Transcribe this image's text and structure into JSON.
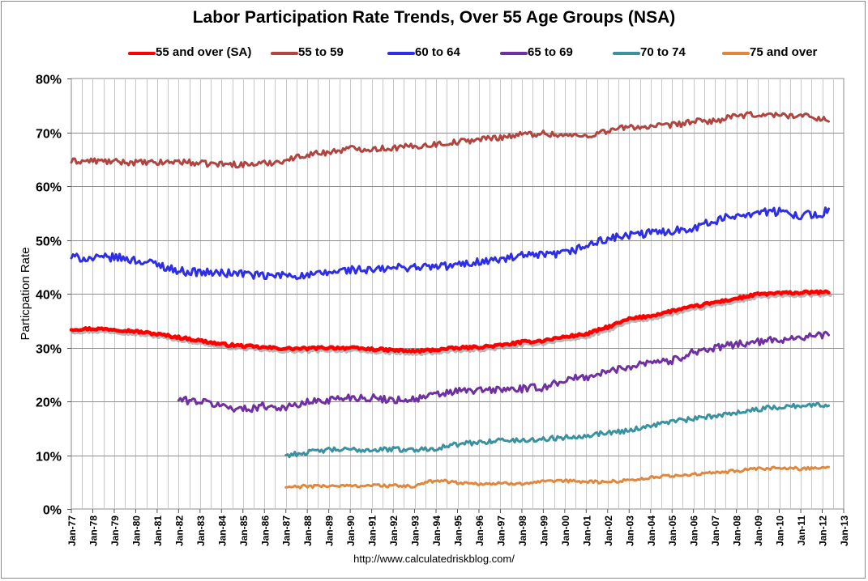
{
  "chart_data": {
    "type": "line",
    "title": "Labor Participation Rate Trends, Over 55 Age Groups (NSA)",
    "ylabel": "Particpation Rate",
    "xlabel": "",
    "source": "http://www.calculatedriskblog.com/",
    "ylim": [
      0,
      80
    ],
    "y_ticks": [
      "0%",
      "10%",
      "20%",
      "30%",
      "40%",
      "50%",
      "60%",
      "70%",
      "80%"
    ],
    "x_range": [
      1977,
      2013
    ],
    "x_ticks": [
      "Jan-77",
      "Jan-78",
      "Jan-79",
      "Jan-80",
      "Jan-81",
      "Jan-82",
      "Jan-83",
      "Jan-84",
      "Jan-85",
      "Jan-86",
      "Jan-87",
      "Jan-88",
      "Jan-89",
      "Jan-90",
      "Jan-91",
      "Jan-92",
      "Jan-93",
      "Jan-94",
      "Jan-95",
      "Jan-96",
      "Jan-97",
      "Jan-98",
      "Jan-99",
      "Jan-00",
      "Jan-01",
      "Jan-02",
      "Jan-03",
      "Jan-04",
      "Jan-05",
      "Jan-06",
      "Jan-07",
      "Jan-08",
      "Jan-09",
      "Jan-10",
      "Jan-11",
      "Jan-12",
      "Jan-13"
    ],
    "grid": true,
    "legend_position": "top",
    "series": [
      {
        "name": "55 and over (SA)",
        "color": "#ff0000",
        "width": 4.5,
        "shadow": true,
        "x": [
          1977,
          1978,
          1979,
          1980,
          1981,
          1982,
          1983,
          1984,
          1985,
          1986,
          1987,
          1988,
          1989,
          1990,
          1991,
          1992,
          1993,
          1994,
          1995,
          1996,
          1997,
          1998,
          1999,
          2000,
          2001,
          2002,
          2003,
          2004,
          2005,
          2006,
          2007,
          2008,
          2009,
          2010,
          2011,
          2012,
          2012.3
        ],
        "y": [
          33.4,
          33.5,
          33.4,
          33.0,
          32.5,
          31.9,
          31.3,
          30.6,
          30.3,
          30.0,
          29.8,
          29.8,
          30.0,
          29.9,
          29.7,
          29.5,
          29.3,
          29.6,
          29.9,
          30.1,
          30.4,
          31.0,
          31.3,
          32.0,
          32.5,
          33.8,
          35.3,
          35.9,
          36.8,
          37.6,
          38.4,
          39.1,
          39.9,
          40.1,
          40.2,
          40.3,
          40.2
        ],
        "noise": 0.25
      },
      {
        "name": "55 to 59",
        "color": "#b0443f",
        "width": 3,
        "shadow": false,
        "x": [
          1977,
          1978,
          1979,
          1980,
          1981,
          1982,
          1983,
          1984,
          1985,
          1986,
          1987,
          1988,
          1989,
          1990,
          1991,
          1992,
          1993,
          1994,
          1995,
          1996,
          1997,
          1998,
          1999,
          2000,
          2001,
          2002,
          2003,
          2004,
          2005,
          2006,
          2007,
          2008,
          2009,
          2010,
          2011,
          2012,
          2012.3
        ],
        "y": [
          64.6,
          64.7,
          64.5,
          64.4,
          64.3,
          64.6,
          64.2,
          64.1,
          64.0,
          64.2,
          64.8,
          65.9,
          66.3,
          67.0,
          66.9,
          67.1,
          67.4,
          67.8,
          68.2,
          68.7,
          69.1,
          69.6,
          69.8,
          69.4,
          69.3,
          70.3,
          71.0,
          71.0,
          71.3,
          72.0,
          72.1,
          73.0,
          73.3,
          73.2,
          73.1,
          72.6,
          72.0
        ],
        "noise": 0.55
      },
      {
        "name": "60 to 64",
        "color": "#2e2ee6",
        "width": 3,
        "shadow": false,
        "x": [
          1977,
          1978,
          1979,
          1980,
          1981,
          1982,
          1983,
          1984,
          1985,
          1986,
          1987,
          1988,
          1989,
          1990,
          1991,
          1992,
          1993,
          1994,
          1995,
          1996,
          1997,
          1998,
          1999,
          2000,
          2001,
          2002,
          2003,
          2004,
          2005,
          2006,
          2007,
          2008,
          2009,
          2010,
          2011,
          2012,
          2012.3
        ],
        "y": [
          46.8,
          46.5,
          46.8,
          46.2,
          45.5,
          44.2,
          44.0,
          43.8,
          43.8,
          43.2,
          43.5,
          43.3,
          43.9,
          44.5,
          44.3,
          44.8,
          45.0,
          45.0,
          45.3,
          46.0,
          46.3,
          47.0,
          47.1,
          47.5,
          48.9,
          50.2,
          50.8,
          51.3,
          51.7,
          52.3,
          53.5,
          54.6,
          55.2,
          55.2,
          54.6,
          54.8,
          55.8
        ],
        "noise": 0.75
      },
      {
        "name": "65 to 69",
        "color": "#7030a0",
        "width": 3,
        "shadow": false,
        "x": [
          1982,
          1983,
          1984,
          1985,
          1986,
          1987,
          1988,
          1989,
          1990,
          1991,
          1992,
          1993,
          1994,
          1995,
          1996,
          1997,
          1998,
          1999,
          2000,
          2001,
          2002,
          2003,
          2004,
          2005,
          2006,
          2007,
          2008,
          2009,
          2010,
          2011,
          2012,
          2012.3
        ],
        "y": [
          20.3,
          20.0,
          19.2,
          18.5,
          19.2,
          18.8,
          19.8,
          20.3,
          20.8,
          20.6,
          20.3,
          20.4,
          21.2,
          21.9,
          22.0,
          22.2,
          22.3,
          22.6,
          24.0,
          24.5,
          25.5,
          26.5,
          27.5,
          27.5,
          29.3,
          29.8,
          30.7,
          31.0,
          31.5,
          32.0,
          32.2,
          32.3
        ],
        "noise": 0.7
      },
      {
        "name": "70 to 74",
        "color": "#3a91a0",
        "width": 3,
        "shadow": false,
        "x": [
          1987,
          1988,
          1989,
          1990,
          1991,
          1992,
          1993,
          1994,
          1995,
          1996,
          1997,
          1998,
          1999,
          2000,
          2001,
          2002,
          2003,
          2004,
          2005,
          2006,
          2007,
          2008,
          2009,
          2010,
          2011,
          2012,
          2012.3
        ],
        "y": [
          10.0,
          10.5,
          11.0,
          11.0,
          11.0,
          11.1,
          11.0,
          11.3,
          12.0,
          12.4,
          12.8,
          12.7,
          13.0,
          13.3,
          13.7,
          14.2,
          14.6,
          15.5,
          16.3,
          16.7,
          17.3,
          18.0,
          18.5,
          19.0,
          19.2,
          19.3,
          19.2
        ],
        "noise": 0.45
      },
      {
        "name": "75 and over",
        "color": "#e0873e",
        "width": 3,
        "shadow": false,
        "x": [
          1987,
          1988,
          1989,
          1990,
          1991,
          1992,
          1993,
          1994,
          1995,
          1996,
          1997,
          1998,
          1999,
          2000,
          2001,
          2002,
          2003,
          2004,
          2005,
          2006,
          2007,
          2008,
          2009,
          2010,
          2011,
          2012,
          2012.3
        ],
        "y": [
          4.0,
          4.2,
          4.3,
          4.3,
          4.4,
          4.3,
          4.2,
          5.4,
          4.9,
          4.7,
          4.7,
          4.8,
          5.0,
          5.2,
          5.1,
          5.0,
          5.4,
          5.8,
          6.2,
          6.4,
          6.7,
          7.1,
          7.4,
          7.6,
          7.5,
          7.7,
          7.8
        ],
        "noise": 0.3
      }
    ]
  }
}
